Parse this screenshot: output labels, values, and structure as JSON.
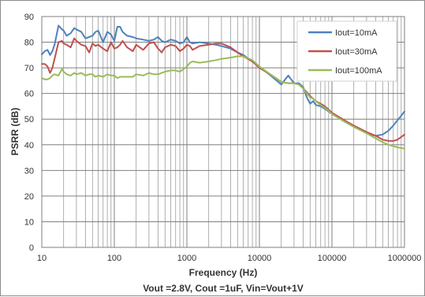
{
  "chart_data": {
    "type": "line",
    "title": "",
    "xlabel": "Frequency (Hz)",
    "ylabel": "PSRR (dB)",
    "caption": "Vout =2.8V, Cout =1uF, Vin=Vout+1V",
    "x_scale": "log",
    "xlim": [
      10,
      1000000
    ],
    "ylim": [
      0,
      90
    ],
    "x_ticks": [
      10,
      100,
      1000,
      10000,
      100000,
      1000000
    ],
    "x_tick_labels": [
      "10",
      "100",
      "1000",
      "10000",
      "100000",
      "1000000"
    ],
    "y_ticks": [
      0,
      10,
      20,
      30,
      40,
      50,
      60,
      70,
      80,
      90
    ],
    "y_tick_labels": [
      "0",
      "10",
      "20",
      "30",
      "40",
      "50",
      "60",
      "70",
      "80",
      "90"
    ],
    "grid": true,
    "legend_position": "top-right",
    "series": [
      {
        "name": "Iout=10mA",
        "color": "#4f81bd",
        "x": [
          10,
          11,
          12,
          13,
          14,
          15,
          17,
          19,
          20,
          22,
          25,
          28,
          30,
          35,
          40,
          45,
          50,
          55,
          60,
          70,
          80,
          90,
          100,
          110,
          120,
          130,
          150,
          180,
          200,
          250,
          300,
          350,
          400,
          450,
          500,
          600,
          700,
          800,
          900,
          1000,
          1100,
          1200,
          1500,
          2000,
          2500,
          3000,
          4000,
          5000,
          6000,
          8000,
          10000,
          15000,
          20000,
          25000,
          30000,
          35000,
          40000,
          45000,
          50000,
          55000,
          60000,
          70000,
          80000,
          100000,
          150000,
          200000,
          300000,
          400000,
          500000,
          600000,
          700000,
          800000,
          1000000
        ],
        "values": [
          75.2,
          76.5,
          77.0,
          75.0,
          76.5,
          79.0,
          86.5,
          85.0,
          84.5,
          82.5,
          83.5,
          85.5,
          85.0,
          84.0,
          81.5,
          82.0,
          82.5,
          84.0,
          84.5,
          80.0,
          84.0,
          83.0,
          80.5,
          86.0,
          86.0,
          84.0,
          82.5,
          82.0,
          81.5,
          81.0,
          80.5,
          81.0,
          82.0,
          80.5,
          80.0,
          81.0,
          80.5,
          79.5,
          80.0,
          82.0,
          80.0,
          79.5,
          80.0,
          79.5,
          79.0,
          78.5,
          77.5,
          76.0,
          75.0,
          72.5,
          70.5,
          66.5,
          63.5,
          67.0,
          64.0,
          64.0,
          62.5,
          58.5,
          56.0,
          57.0,
          55.5,
          55.0,
          54.0,
          52.0,
          49.0,
          47.0,
          44.5,
          43.5,
          44.0,
          45.5,
          47.5,
          49.5,
          53.0
        ]
      },
      {
        "name": "Iout=30mA",
        "color": "#c0504d",
        "x": [
          10,
          11,
          12,
          13,
          14,
          15,
          17,
          19,
          20,
          22,
          25,
          28,
          30,
          35,
          40,
          45,
          50,
          55,
          60,
          70,
          80,
          90,
          100,
          110,
          120,
          130,
          150,
          180,
          200,
          250,
          300,
          350,
          400,
          450,
          500,
          600,
          700,
          800,
          900,
          1000,
          1100,
          1200,
          1500,
          2000,
          2500,
          3000,
          4000,
          5000,
          6000,
          8000,
          10000,
          15000,
          20000,
          25000,
          30000,
          35000,
          40000,
          45000,
          50000,
          55000,
          60000,
          70000,
          80000,
          100000,
          150000,
          200000,
          300000,
          400000,
          500000,
          600000,
          700000,
          800000,
          1000000
        ],
        "values": [
          71.5,
          71.5,
          70.5,
          68.0,
          70.0,
          73.5,
          80.0,
          80.5,
          79.5,
          79.0,
          78.0,
          81.5,
          80.5,
          79.0,
          78.5,
          76.0,
          79.5,
          78.5,
          79.0,
          77.5,
          76.5,
          80.0,
          77.5,
          78.0,
          79.0,
          80.5,
          78.0,
          76.5,
          79.0,
          77.0,
          79.5,
          80.0,
          77.5,
          76.0,
          78.0,
          79.0,
          78.5,
          76.5,
          77.5,
          79.0,
          78.5,
          77.0,
          78.5,
          79.0,
          79.5,
          79.5,
          78.0,
          76.0,
          74.5,
          72.5,
          70.0,
          67.0,
          64.5,
          64.0,
          64.0,
          63.5,
          62.0,
          60.5,
          59.0,
          58.0,
          57.0,
          56.0,
          55.0,
          52.5,
          49.5,
          47.5,
          45.0,
          43.5,
          42.0,
          41.5,
          41.5,
          42.0,
          44.0
        ]
      },
      {
        "name": "Iout=100mA",
        "color": "#9bbb59",
        "x": [
          10,
          11,
          12,
          13,
          14,
          15,
          17,
          19,
          20,
          22,
          25,
          28,
          30,
          35,
          40,
          45,
          50,
          55,
          60,
          70,
          80,
          90,
          100,
          110,
          120,
          130,
          150,
          180,
          200,
          250,
          300,
          350,
          400,
          450,
          500,
          600,
          700,
          800,
          900,
          1000,
          1100,
          1200,
          1500,
          2000,
          2500,
          3000,
          4000,
          5000,
          6000,
          8000,
          10000,
          15000,
          20000,
          25000,
          30000,
          35000,
          40000,
          45000,
          50000,
          55000,
          60000,
          70000,
          80000,
          100000,
          150000,
          200000,
          300000,
          400000,
          500000,
          600000,
          700000,
          800000,
          1000000
        ],
        "values": [
          66.0,
          65.5,
          65.5,
          66.0,
          67.0,
          67.5,
          67.0,
          69.5,
          68.5,
          67.5,
          67.0,
          68.0,
          67.5,
          68.0,
          67.0,
          67.5,
          67.5,
          66.5,
          67.0,
          66.5,
          67.5,
          67.0,
          67.0,
          66.0,
          66.5,
          66.5,
          66.5,
          66.5,
          67.5,
          67.0,
          68.0,
          67.5,
          67.5,
          68.0,
          68.5,
          69.0,
          69.0,
          68.5,
          69.5,
          70.5,
          72.0,
          72.5,
          72.0,
          72.5,
          73.0,
          73.5,
          74.0,
          74.5,
          74.5,
          73.0,
          70.5,
          67.0,
          64.5,
          64.0,
          64.0,
          63.5,
          62.0,
          60.0,
          58.5,
          58.0,
          57.0,
          55.5,
          54.5,
          52.0,
          49.0,
          47.0,
          44.5,
          42.5,
          41.0,
          40.0,
          39.5,
          39.0,
          38.5
        ]
      }
    ]
  }
}
